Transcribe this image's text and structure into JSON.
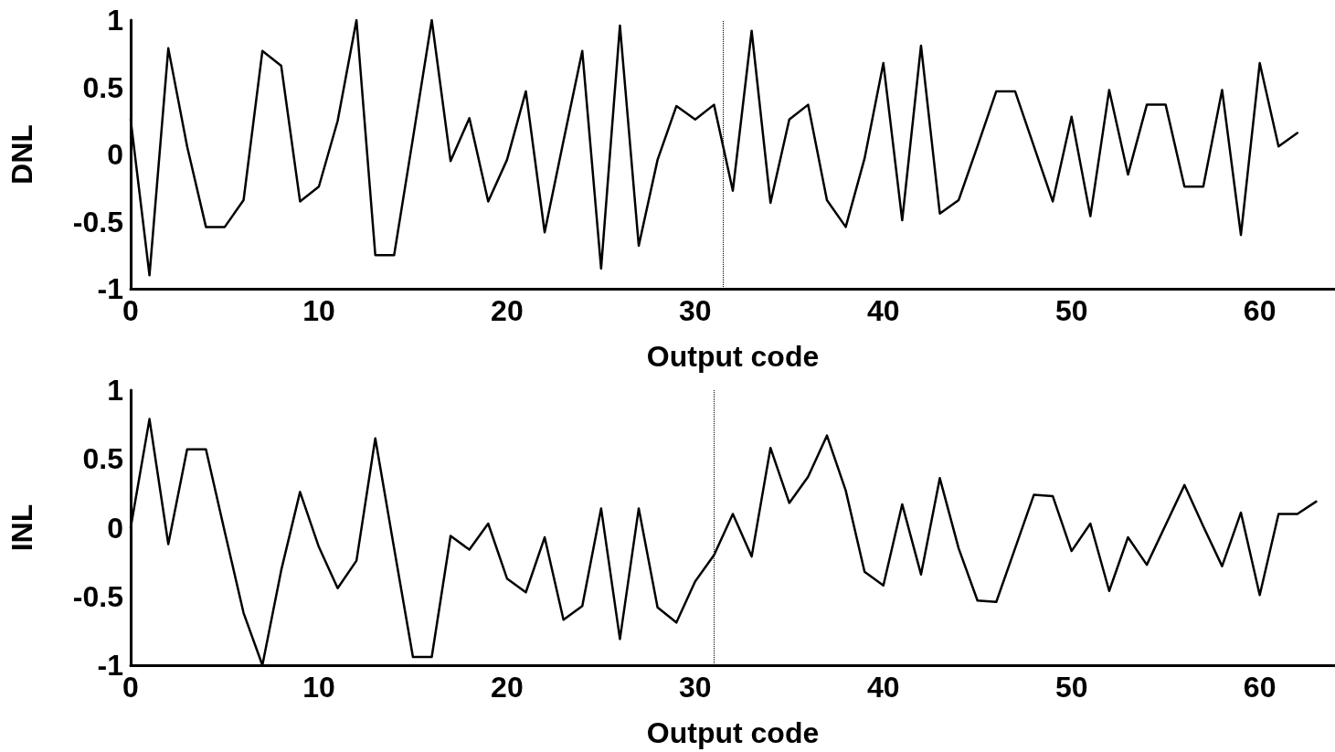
{
  "chart_data": [
    {
      "type": "line",
      "xlabel": "Output code",
      "ylabel": "DNL",
      "x": [
        0,
        1,
        2,
        3,
        4,
        5,
        6,
        7,
        8,
        9,
        10,
        11,
        12,
        13,
        14,
        15,
        16,
        17,
        18,
        19,
        20,
        21,
        22,
        23,
        24,
        25,
        26,
        27,
        28,
        29,
        30,
        31,
        32,
        33,
        34,
        35,
        36,
        37,
        38,
        39,
        40,
        41,
        42,
        43,
        44,
        45,
        46,
        47,
        48,
        49,
        50,
        51,
        52,
        53,
        54,
        55,
        56,
        57,
        58,
        59,
        60,
        61,
        62
      ],
      "series": [
        {
          "color": "#000000",
          "values": [
            0.26,
            -0.9,
            0.79,
            0.06,
            -0.54,
            -0.54,
            -0.34,
            0.77,
            0.66,
            -0.35,
            -0.24,
            0.25,
            1.0,
            -0.75,
            -0.75,
            0.12,
            1.0,
            -0.05,
            0.27,
            -0.35,
            -0.04,
            0.47,
            -0.58,
            0.1,
            0.77,
            -0.85,
            0.96,
            -0.68,
            -0.04,
            0.36,
            0.26,
            0.37,
            -0.27,
            0.92,
            -0.36,
            0.26,
            0.37,
            -0.34,
            -0.54,
            -0.03,
            0.68,
            -0.49,
            0.81,
            -0.44,
            -0.34,
            0.06,
            0.47,
            0.47,
            0.06,
            -0.35,
            0.28,
            -0.46,
            0.48,
            -0.15,
            0.37,
            0.37,
            -0.24,
            -0.24,
            0.48,
            -0.6,
            0.68,
            0.06,
            0.16
          ]
        }
      ],
      "xlim": [
        0,
        64
      ],
      "xticks": [
        0,
        10,
        20,
        30,
        40,
        50,
        60
      ],
      "ylim": [
        -1,
        1
      ],
      "yticks": [
        -1,
        -0.5,
        0,
        0.5,
        1
      ],
      "grid": false,
      "marker": "none",
      "line_style": "solid",
      "ref_lines": [
        {
          "axis": "x",
          "value": 31.5,
          "color": "#000000",
          "line_style": "dotted"
        }
      ]
    },
    {
      "type": "line",
      "xlabel": "Output code",
      "ylabel": "INL",
      "x": [
        0,
        1,
        2,
        3,
        4,
        5,
        6,
        7,
        8,
        9,
        10,
        11,
        12,
        13,
        14,
        15,
        16,
        17,
        18,
        19,
        20,
        21,
        22,
        23,
        24,
        25,
        26,
        27,
        28,
        29,
        30,
        31,
        32,
        33,
        34,
        35,
        36,
        37,
        38,
        39,
        40,
        41,
        42,
        43,
        44,
        45,
        46,
        47,
        48,
        49,
        50,
        51,
        52,
        53,
        54,
        55,
        56,
        57,
        58,
        59,
        60,
        61,
        62,
        63
      ],
      "series": [
        {
          "color": "#000000",
          "values": [
            0,
            0.79,
            -0.12,
            0.57,
            0.57,
            -0.03,
            -0.62,
            -1.0,
            -0.31,
            0.26,
            -0.14,
            -0.44,
            -0.24,
            0.65,
            -0.15,
            -0.94,
            -0.94,
            -0.06,
            -0.16,
            0.03,
            -0.37,
            -0.47,
            -0.07,
            -0.67,
            -0.57,
            0.14,
            -0.81,
            0.14,
            -0.58,
            -0.69,
            -0.39,
            -0.2,
            0.1,
            -0.21,
            0.58,
            0.18,
            0.37,
            0.67,
            0.27,
            -0.32,
            -0.42,
            0.17,
            -0.34,
            0.36,
            -0.15,
            -0.53,
            -0.54,
            -0.15,
            0.24,
            0.23,
            -0.17,
            0.03,
            -0.46,
            -0.07,
            -0.27,
            0.02,
            0.31,
            0.01,
            -0.28,
            0.11,
            -0.49,
            0.1,
            0.1,
            0.19
          ]
        }
      ],
      "xlim": [
        0,
        64
      ],
      "xticks": [
        0,
        10,
        20,
        30,
        40,
        50,
        60
      ],
      "ylim": [
        -1,
        1
      ],
      "yticks": [
        -1,
        -0.5,
        0,
        0.5,
        1
      ],
      "grid": false,
      "marker": "none",
      "line_style": "solid",
      "ref_lines": [
        {
          "axis": "x",
          "value": 31,
          "color": "#000000",
          "line_style": "dotted"
        }
      ]
    }
  ]
}
